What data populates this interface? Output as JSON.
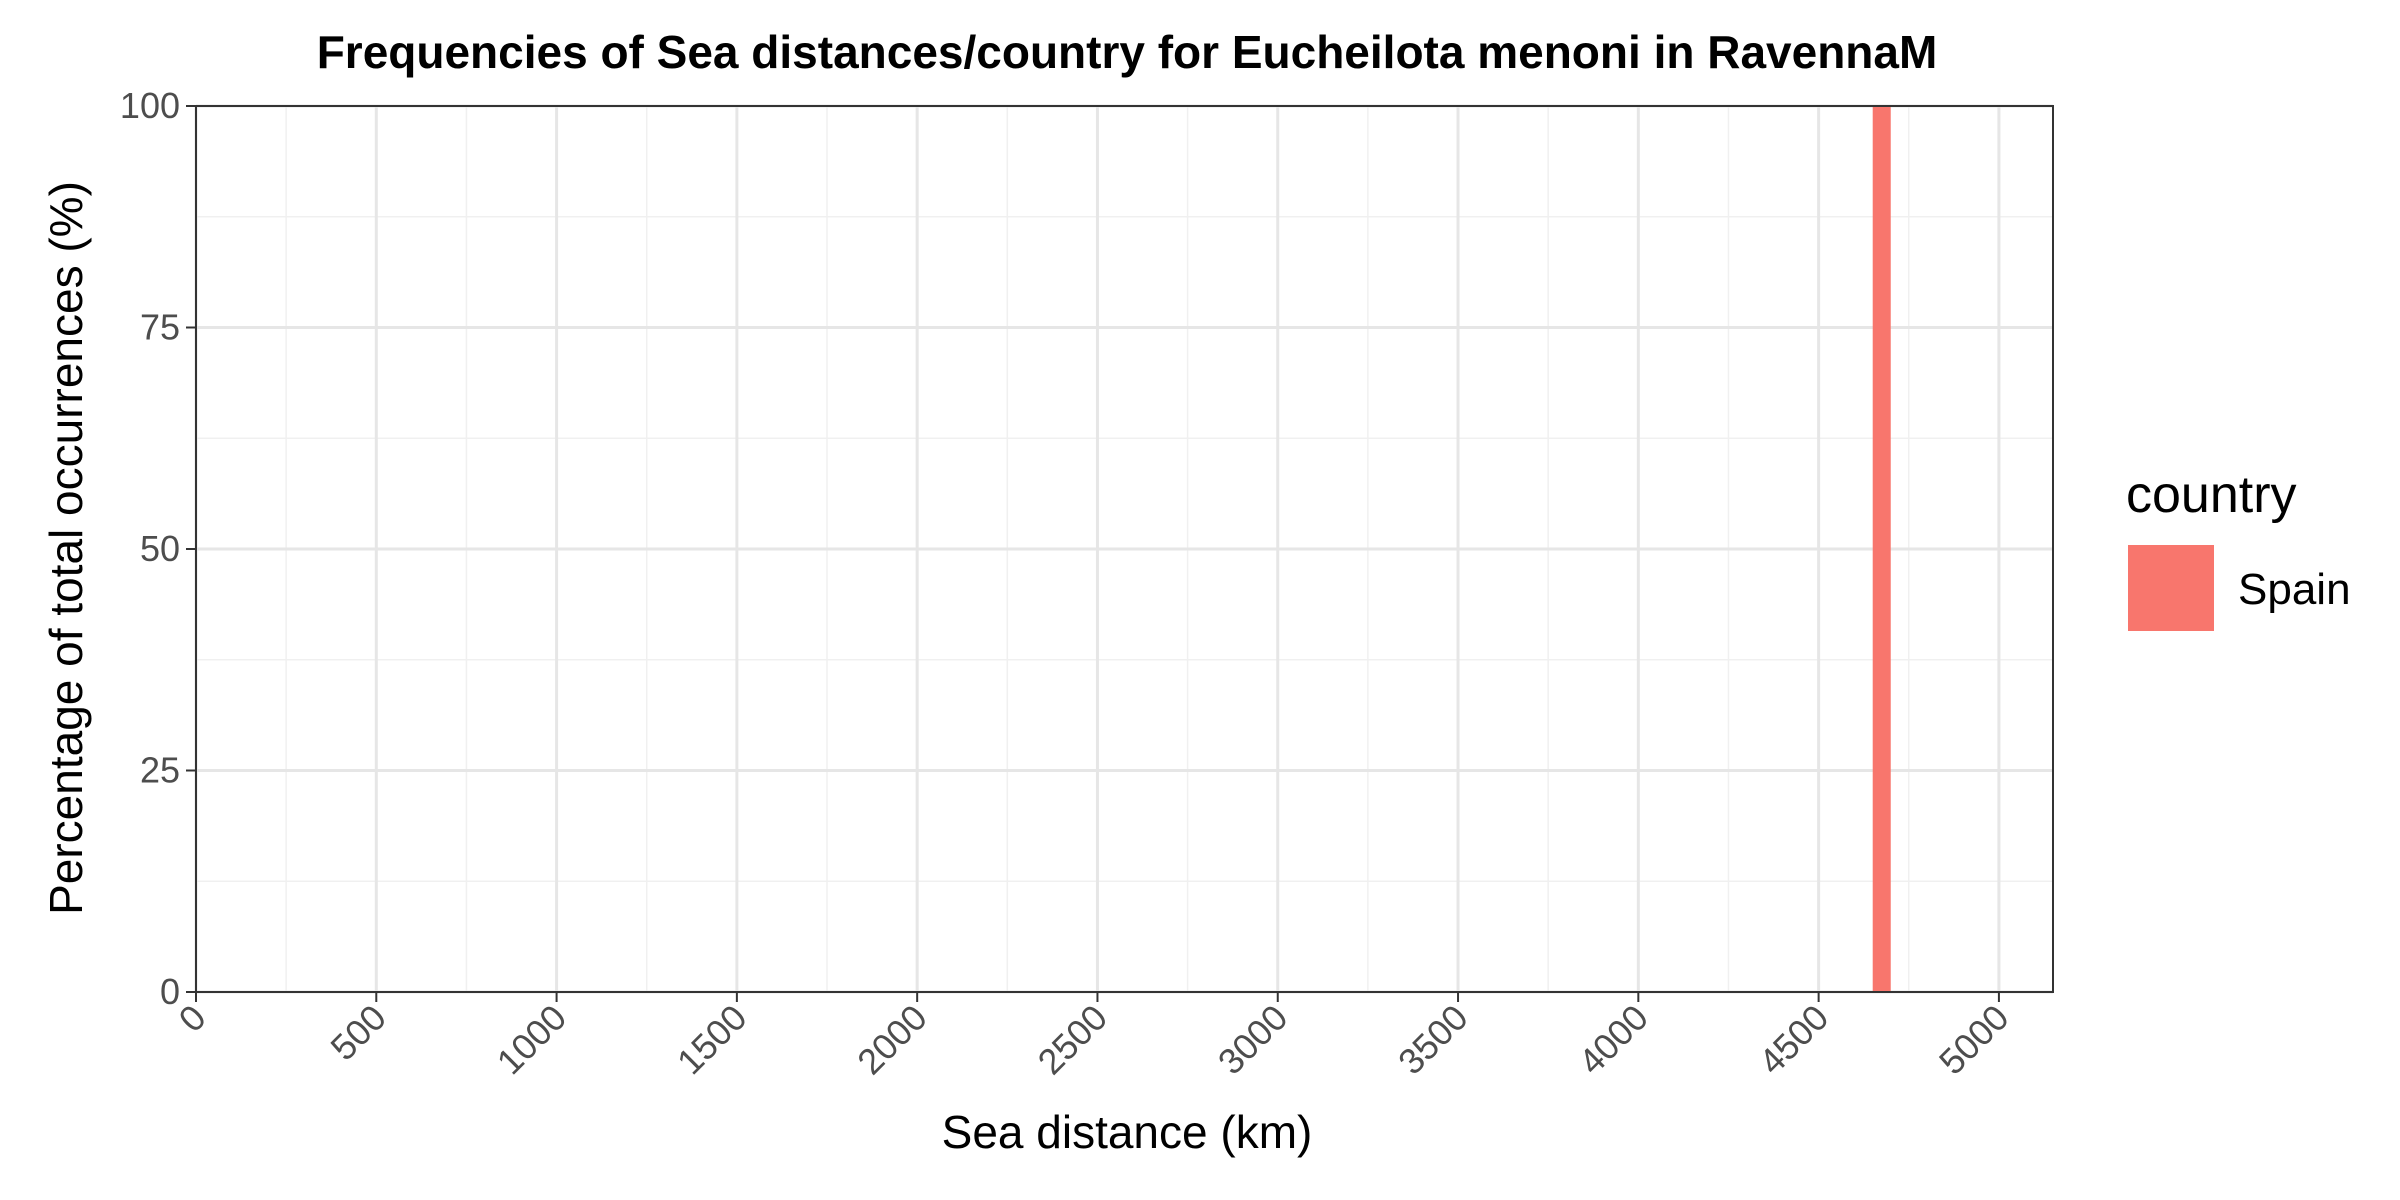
{
  "chart_data": {
    "type": "bar",
    "title": "Frequencies of Sea distances/country for Eucheilota menoni in RavennaM",
    "xlabel": "Sea distance (km)",
    "ylabel": "Percentage of total occurrences (%)",
    "xlim": [
      0,
      5150
    ],
    "ylim": [
      0,
      100
    ],
    "x_ticks": [
      0,
      500,
      1000,
      1500,
      2000,
      2500,
      3000,
      3500,
      4000,
      4500,
      5000
    ],
    "y_ticks": [
      0,
      25,
      50,
      75,
      100
    ],
    "grid": true,
    "legend": {
      "title": "country",
      "placement": "right",
      "entries": [
        {
          "label": "Spain",
          "color": "#F8766D"
        }
      ]
    },
    "series": [
      {
        "name": "Spain",
        "color": "#F8766D",
        "bars": [
          {
            "x_start": 4650,
            "x_end": 4700,
            "value": 100
          }
        ]
      }
    ]
  }
}
